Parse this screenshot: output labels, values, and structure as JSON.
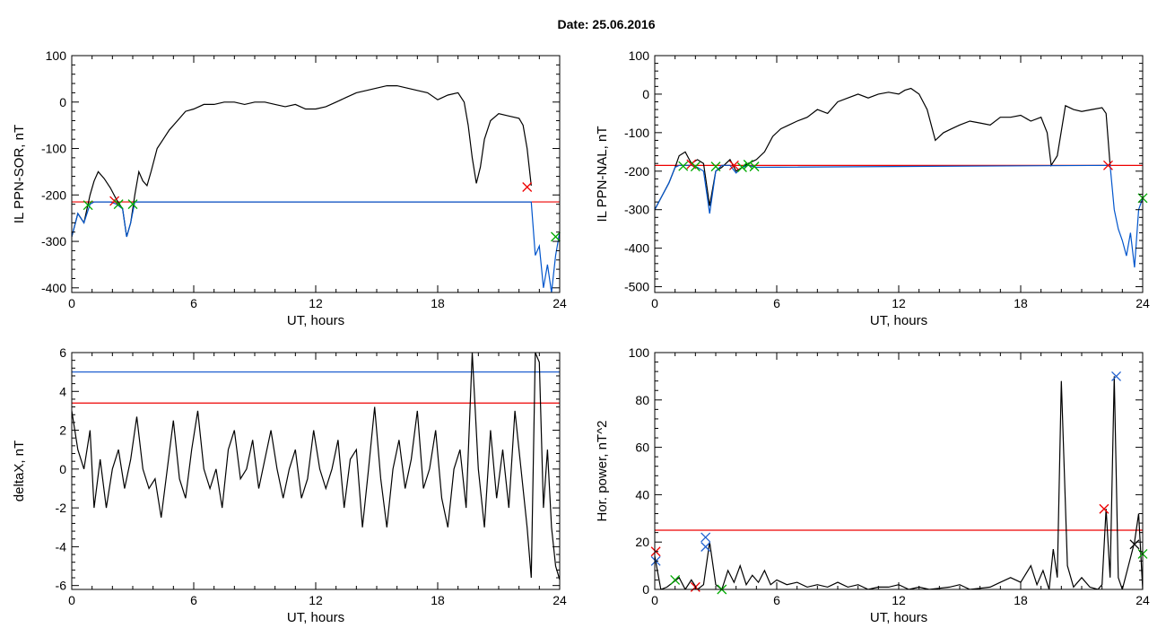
{
  "header": {
    "date_label": "Date:  25.06.2016"
  },
  "chart_data": [
    {
      "type": "line",
      "panel": "top-left",
      "ylabel": "IL PPN-SOR, nT",
      "xlabel": "UT, hours",
      "xlim": [
        0,
        24
      ],
      "ylim": [
        -410,
        100
      ],
      "xticks": [
        0,
        6,
        12,
        18,
        24
      ],
      "yticks": [
        -400,
        -300,
        -200,
        -100,
        0,
        100
      ],
      "grid": false,
      "series": [
        {
          "color": "#000000",
          "x": [
            0,
            0.3,
            0.6,
            0.9,
            1.1,
            1.3,
            1.6,
            1.9,
            2.2,
            2.5,
            2.7,
            2.9,
            3.1,
            3.3,
            3.5,
            3.7,
            3.9,
            4.2,
            4.5,
            4.8,
            5.2,
            5.6,
            6.0,
            6.5,
            7,
            7.5,
            8,
            8.5,
            9,
            9.5,
            10,
            10.5,
            11,
            11.5,
            12,
            12.5,
            13,
            13.5,
            14,
            14.5,
            15,
            15.5,
            16,
            16.5,
            17,
            17.5,
            18,
            18.5,
            19.0,
            19.3,
            19.5,
            19.7,
            19.9,
            20.1,
            20.3,
            20.6,
            21.0,
            21.5,
            22.0,
            22.2,
            22.4,
            22.6
          ],
          "y": [
            -290,
            -240,
            -260,
            -200,
            -170,
            -150,
            -165,
            -185,
            -210,
            -230,
            -290,
            -260,
            -200,
            -150,
            -170,
            -180,
            -150,
            -100,
            -80,
            -60,
            -40,
            -20,
            -15,
            -5,
            -5,
            0,
            0,
            -5,
            0,
            0,
            -5,
            -10,
            -5,
            -15,
            -15,
            -10,
            0,
            10,
            20,
            25,
            30,
            35,
            35,
            30,
            25,
            20,
            5,
            15,
            20,
            0,
            -50,
            -120,
            -175,
            -140,
            -80,
            -40,
            -25,
            -30,
            -35,
            -50,
            -100,
            -180
          ]
        },
        {
          "color": "#0055cc",
          "x": [
            0,
            0.3,
            0.6,
            0.9,
            1.1,
            1.9,
            2.2,
            2.5,
            2.7,
            2.9,
            3.1,
            22.6,
            22.8,
            23.0,
            23.2,
            23.4,
            23.6,
            23.8,
            24
          ],
          "y": [
            -290,
            -240,
            -260,
            -220,
            -215,
            -215,
            -220,
            -230,
            -290,
            -260,
            -215,
            -215,
            -330,
            -310,
            -400,
            -350,
            -410,
            -330,
            -280
          ]
        }
      ],
      "threshold": {
        "y": -215,
        "color": "#ee0000"
      },
      "markers": [
        {
          "x": 0.8,
          "y": -222,
          "color": "#00aa00"
        },
        {
          "x": 2.1,
          "y": -213,
          "color": "#ee0000"
        },
        {
          "x": 2.3,
          "y": -220,
          "color": "#00aa00"
        },
        {
          "x": 3.0,
          "y": -220,
          "color": "#00aa00"
        },
        {
          "x": 22.4,
          "y": -183,
          "color": "#ee0000"
        },
        {
          "x": 23.8,
          "y": -290,
          "color": "#00aa00"
        }
      ]
    },
    {
      "type": "line",
      "panel": "top-right",
      "ylabel": "IL PPN-NAL, nT",
      "xlabel": "UT, hours",
      "xlim": [
        0,
        24
      ],
      "ylim": [
        -515,
        100
      ],
      "xticks": [
        0,
        6,
        12,
        18,
        24
      ],
      "yticks": [
        -500,
        -400,
        -300,
        -200,
        -100,
        0,
        100
      ],
      "grid": false,
      "series": [
        {
          "color": "#000000",
          "x": [
            0,
            0.4,
            0.7,
            1.0,
            1.2,
            1.5,
            1.8,
            2.1,
            2.4,
            2.7,
            3.0,
            3.3,
            3.7,
            4.0,
            4.3,
            4.6,
            5.0,
            5.4,
            5.8,
            6.2,
            6.6,
            7,
            7.5,
            8,
            8.5,
            9,
            9.5,
            10,
            10.5,
            11,
            11.5,
            12,
            12.3,
            12.6,
            13,
            13.4,
            13.8,
            14.2,
            14.6,
            15,
            15.5,
            16,
            16.5,
            17,
            17.5,
            18,
            18.5,
            19,
            19.3,
            19.5,
            19.8,
            20.2,
            20.6,
            21.0,
            21.5,
            22.0,
            22.2,
            22.4
          ],
          "y": [
            -300,
            -260,
            -230,
            -190,
            -160,
            -150,
            -180,
            -170,
            -180,
            -290,
            -200,
            -190,
            -170,
            -200,
            -190,
            -180,
            -170,
            -150,
            -110,
            -90,
            -80,
            -70,
            -60,
            -40,
            -50,
            -20,
            -10,
            0,
            -10,
            0,
            5,
            0,
            10,
            15,
            0,
            -40,
            -120,
            -100,
            -90,
            -80,
            -70,
            -75,
            -80,
            -60,
            -60,
            -55,
            -70,
            -60,
            -100,
            -185,
            -160,
            -30,
            -40,
            -45,
            -40,
            -35,
            -50,
            -185
          ]
        },
        {
          "color": "#0055cc",
          "x": [
            0,
            0.4,
            0.7,
            1.0,
            1.2,
            1.5,
            1.8,
            2.1,
            2.4,
            2.7,
            3.0,
            3.3,
            3.7,
            4.0,
            4.3,
            4.6,
            5.0,
            22.4,
            22.6,
            22.8,
            23.0,
            23.2,
            23.4,
            23.6,
            23.8,
            24
          ],
          "y": [
            -300,
            -260,
            -230,
            -190,
            -185,
            -185,
            -185,
            -190,
            -200,
            -310,
            -200,
            -185,
            -185,
            -205,
            -190,
            -185,
            -190,
            -185,
            -300,
            -350,
            -380,
            -420,
            -360,
            -450,
            -300,
            -270
          ]
        }
      ],
      "threshold": {
        "y": -185,
        "color": "#ee0000"
      },
      "markers": [
        {
          "x": 1.4,
          "y": -187,
          "color": "#00aa00"
        },
        {
          "x": 1.8,
          "y": -182,
          "color": "#ee0000"
        },
        {
          "x": 2.0,
          "y": -188,
          "color": "#00aa00"
        },
        {
          "x": 3.0,
          "y": -188,
          "color": "#00aa00"
        },
        {
          "x": 3.9,
          "y": -185,
          "color": "#ee0000"
        },
        {
          "x": 4.3,
          "y": -190,
          "color": "#00aa00"
        },
        {
          "x": 4.6,
          "y": -183,
          "color": "#00aa00"
        },
        {
          "x": 4.9,
          "y": -188,
          "color": "#00aa00"
        },
        {
          "x": 22.3,
          "y": -185,
          "color": "#ee0000"
        },
        {
          "x": 24.0,
          "y": -270,
          "color": "#00aa00"
        }
      ]
    },
    {
      "type": "line",
      "panel": "bottom-left",
      "ylabel": "deltaX, nT",
      "xlabel": "UT, hours",
      "xlim": [
        0,
        24
      ],
      "ylim": [
        -6.2,
        6
      ],
      "xticks": [
        0,
        6,
        12,
        18,
        24
      ],
      "yticks": [
        -6,
        -4,
        -2,
        0,
        2,
        4,
        6
      ],
      "grid": false,
      "series": [
        {
          "color": "#000000",
          "x": [
            0,
            0.3,
            0.6,
            0.9,
            1.1,
            1.4,
            1.7,
            2.0,
            2.3,
            2.6,
            2.9,
            3.2,
            3.5,
            3.8,
            4.1,
            4.4,
            4.7,
            5.0,
            5.3,
            5.6,
            5.9,
            6.2,
            6.5,
            6.8,
            7.1,
            7.4,
            7.7,
            8.0,
            8.3,
            8.6,
            8.9,
            9.2,
            9.5,
            9.8,
            10.1,
            10.4,
            10.7,
            11.0,
            11.3,
            11.6,
            11.9,
            12.2,
            12.5,
            12.8,
            13.1,
            13.4,
            13.7,
            14.0,
            14.3,
            14.6,
            14.9,
            15.2,
            15.5,
            15.8,
            16.1,
            16.4,
            16.7,
            17.0,
            17.3,
            17.6,
            17.9,
            18.2,
            18.5,
            18.8,
            19.1,
            19.4,
            19.7,
            20.0,
            20.3,
            20.6,
            20.9,
            21.2,
            21.5,
            21.8,
            22.1,
            22.4,
            22.6,
            22.8,
            23.0,
            23.2,
            23.4,
            23.6,
            23.8,
            24
          ],
          "y": [
            3,
            1,
            0,
            2,
            -2,
            0.5,
            -2,
            0,
            1,
            -1,
            0.5,
            2.7,
            0,
            -1,
            -0.5,
            -2.5,
            0,
            2.5,
            -0.5,
            -1.5,
            1,
            3,
            0,
            -1,
            0,
            -2,
            1,
            2,
            -0.5,
            0,
            1.5,
            -1,
            0.5,
            2,
            0,
            -1.5,
            0,
            1,
            -1.5,
            -0.5,
            2,
            0,
            -1,
            0,
            1.5,
            -2,
            0.5,
            1,
            -3,
            0,
            3.2,
            -0.5,
            -3,
            0,
            1.5,
            -1,
            0.5,
            3,
            -1,
            0,
            2,
            -1.5,
            -3,
            0,
            1,
            -2,
            6,
            0,
            -3,
            2,
            -1.5,
            1,
            -2,
            3,
            0,
            -3,
            -5.6,
            6,
            5.5,
            -2,
            1,
            -3,
            -5,
            -5.7
          ]
        }
      ],
      "hlines": [
        {
          "y": 5,
          "color": "#2060d0"
        },
        {
          "y": 3.4,
          "color": "#ee0000"
        }
      ],
      "markers": []
    },
    {
      "type": "line",
      "panel": "bottom-right",
      "ylabel": "Hor. power, nT^2",
      "xlabel": "UT, hours",
      "xlim": [
        0,
        24
      ],
      "ylim": [
        0,
        100
      ],
      "xticks": [
        0,
        6,
        12,
        18,
        24
      ],
      "yticks": [
        0,
        20,
        40,
        60,
        80,
        100
      ],
      "grid": false,
      "series": [
        {
          "color": "#000000",
          "x": [
            0,
            0.3,
            0.6,
            0.9,
            1.2,
            1.5,
            1.8,
            2.1,
            2.4,
            2.7,
            3.0,
            3.3,
            3.6,
            3.9,
            4.2,
            4.5,
            4.8,
            5.1,
            5.4,
            5.7,
            6.0,
            6.5,
            7,
            7.5,
            8,
            8.5,
            9,
            9.5,
            10,
            10.5,
            11,
            11.5,
            12,
            12.5,
            13,
            13.5,
            14,
            14.5,
            15,
            15.5,
            16,
            16.5,
            17,
            17.5,
            18,
            18.5,
            18.8,
            19.1,
            19.4,
            19.6,
            19.8,
            20.0,
            20.3,
            20.6,
            21.0,
            21.4,
            21.8,
            22.0,
            22.2,
            22.4,
            22.6,
            22.8,
            23.0,
            23.3,
            23.6,
            23.8,
            24
          ],
          "y": [
            14,
            0,
            1,
            3,
            5,
            0,
            4,
            0,
            2,
            20,
            2,
            0,
            8,
            3,
            10,
            2,
            6,
            3,
            8,
            2,
            4,
            2,
            3,
            1,
            2,
            1,
            3,
            1,
            2,
            0,
            1,
            1,
            2,
            0,
            1,
            0,
            0.5,
            1,
            2,
            0,
            0.5,
            1,
            3,
            5,
            3,
            10,
            2,
            8,
            0,
            17,
            5,
            88,
            10,
            1,
            5,
            1,
            0,
            2,
            34,
            5,
            90,
            5,
            0,
            10,
            20,
            32,
            0
          ]
        }
      ],
      "threshold": {
        "y": 25,
        "color": "#ee0000"
      },
      "markers": [
        {
          "x": 0.05,
          "y": 16,
          "color": "#ee0000"
        },
        {
          "x": 0.05,
          "y": 12,
          "color": "#2060d0"
        },
        {
          "x": 1.0,
          "y": 4,
          "color": "#00aa00"
        },
        {
          "x": 2.0,
          "y": 1,
          "color": "#ee0000"
        },
        {
          "x": 2.5,
          "y": 22,
          "color": "#2060d0"
        },
        {
          "x": 2.5,
          "y": 18,
          "color": "#2060d0"
        },
        {
          "x": 3.3,
          "y": 0,
          "color": "#00aa00"
        },
        {
          "x": 22.1,
          "y": 34,
          "color": "#ee0000"
        },
        {
          "x": 22.7,
          "y": 90,
          "color": "#2060d0"
        },
        {
          "x": 23.6,
          "y": 19,
          "color": "#000000"
        },
        {
          "x": 24.0,
          "y": 15,
          "color": "#00aa00"
        }
      ]
    }
  ]
}
